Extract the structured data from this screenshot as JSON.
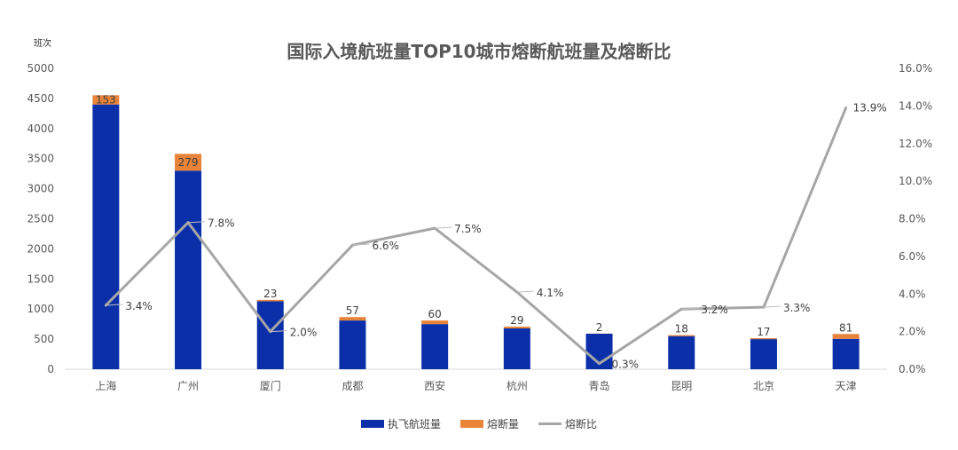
{
  "chart_data": {
    "type": "bar",
    "title": "国际入境航班量TOP10城市熔断航班量及熔断比",
    "ylabel": "班次",
    "ylim": [
      0,
      5000
    ],
    "y2lim": [
      0,
      16
    ],
    "y_ticks": [
      "0",
      "500",
      "1000",
      "1500",
      "2000",
      "2500",
      "3000",
      "3500",
      "4000",
      "4500",
      "5000"
    ],
    "y2_ticks": [
      "0.0%",
      "2.0%",
      "4.0%",
      "6.0%",
      "8.0%",
      "10.0%",
      "12.0%",
      "14.0%",
      "16.0%"
    ],
    "categories": [
      "上海",
      "广州",
      "厦门",
      "成都",
      "西安",
      "杭州",
      "青岛",
      "昆明",
      "北京",
      "天津"
    ],
    "series": [
      {
        "name": "执飞航班量",
        "type": "bar",
        "stack": true,
        "color": "#0A2FA8",
        "values": [
          4400,
          3300,
          1130,
          810,
          750,
          680,
          590,
          550,
          500,
          505
        ]
      },
      {
        "name": "熔断量",
        "type": "bar",
        "stack": true,
        "color": "#E8843A",
        "values": [
          153,
          279,
          23,
          57,
          60,
          29,
          2,
          18,
          17,
          81
        ],
        "labels": [
          "153",
          "279",
          "23",
          "57",
          "60",
          "29",
          "2",
          "18",
          "17",
          "81"
        ]
      },
      {
        "name": "熔断比",
        "type": "line",
        "axis": "right",
        "color": "#A6A6A6",
        "values": [
          3.4,
          7.8,
          2.0,
          6.6,
          7.5,
          4.1,
          0.3,
          3.2,
          3.3,
          13.9
        ],
        "labels": [
          "3.4%",
          "7.8%",
          "2.0%",
          "6.6%",
          "7.5%",
          "4.1%",
          "0.3%",
          "3.2%",
          "3.3%",
          "13.9%"
        ]
      }
    ],
    "legend_position": "bottom",
    "grid": false
  }
}
